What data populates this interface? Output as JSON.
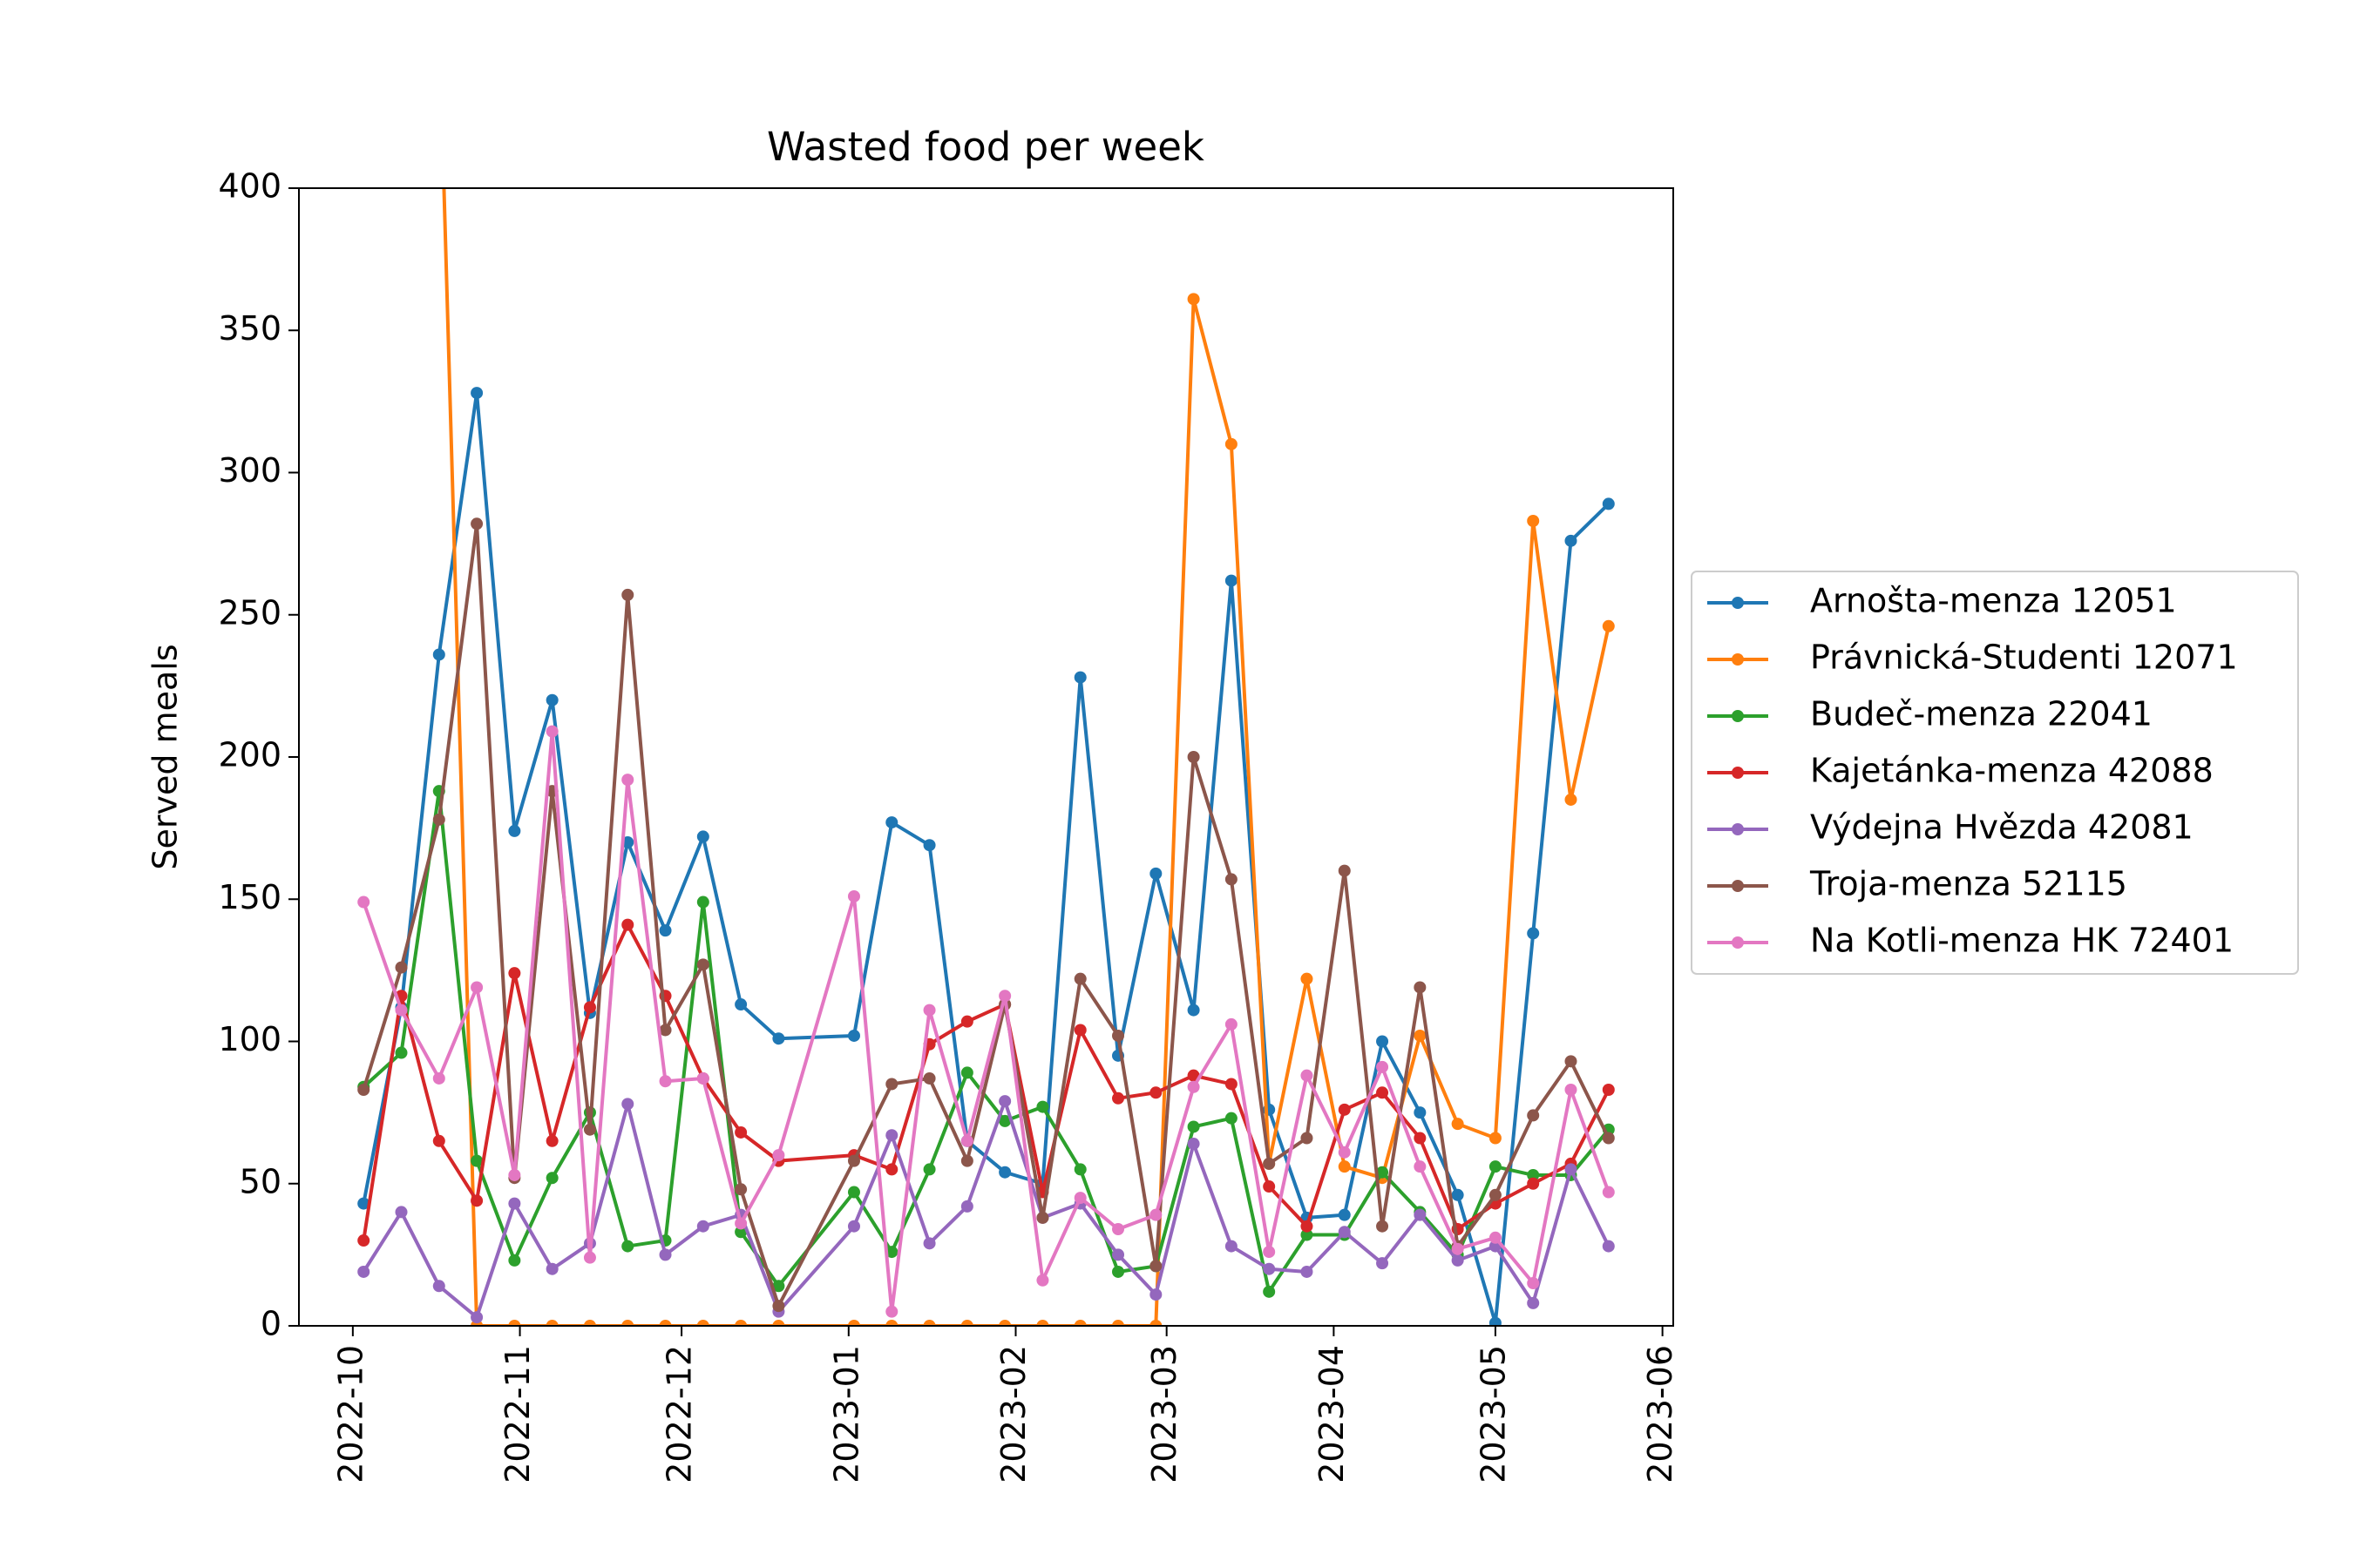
{
  "chart_data": {
    "type": "line",
    "title": "Wasted food per week",
    "y_label": "Served meals",
    "x": [
      "2022-10-03",
      "2022-10-10",
      "2022-10-17",
      "2022-10-24",
      "2022-10-31",
      "2022-11-07",
      "2022-11-14",
      "2022-11-21",
      "2022-11-28",
      "2022-12-05",
      "2022-12-12",
      "2022-12-19",
      "2023-01-02",
      "2023-01-09",
      "2023-01-16",
      "2023-01-23",
      "2023-01-30",
      "2023-02-06",
      "2023-02-13",
      "2023-02-20",
      "2023-02-27",
      "2023-03-06",
      "2023-03-13",
      "2023-03-20",
      "2023-03-27",
      "2023-04-03",
      "2023-04-10",
      "2023-04-17",
      "2023-04-24",
      "2023-05-01",
      "2023-05-08",
      "2023-05-15",
      "2023-05-22"
    ],
    "series": [
      {
        "name": "Arnošta-menza 12051",
        "color": "#1f77b4",
        "values": [
          43,
          112,
          236,
          328,
          174,
          220,
          110,
          170,
          139,
          172,
          113,
          101,
          102,
          177,
          169,
          65,
          54,
          50,
          228,
          95,
          159,
          111,
          262,
          76,
          38,
          39,
          100,
          75,
          46,
          1,
          138,
          276,
          289
        ]
      },
      {
        "name": "Právnická-Studenti 12071",
        "color": "#ff7f0e",
        "values": [
          null,
          null,
          460,
          0,
          0,
          0,
          0,
          0,
          0,
          0,
          0,
          0,
          0,
          0,
          0,
          0,
          0,
          0,
          0,
          0,
          0,
          361,
          310,
          57,
          122,
          56,
          52,
          102,
          71,
          66,
          283,
          185,
          246
        ]
      },
      {
        "name": "Budeč-menza 22041",
        "color": "#2ca02c",
        "values": [
          84,
          96,
          188,
          58,
          23,
          52,
          75,
          28,
          30,
          149,
          33,
          14,
          47,
          26,
          55,
          89,
          72,
          77,
          55,
          19,
          21,
          70,
          73,
          12,
          32,
          32,
          54,
          40,
          25,
          56,
          53,
          53,
          69
        ]
      },
      {
        "name": "Kajetánka-menza 42088",
        "color": "#d62728",
        "values": [
          30,
          116,
          65,
          44,
          124,
          65,
          112,
          141,
          116,
          87,
          68,
          58,
          60,
          55,
          99,
          107,
          113,
          47,
          104,
          80,
          82,
          88,
          85,
          49,
          35,
          76,
          82,
          66,
          34,
          43,
          50,
          57,
          83
        ]
      },
      {
        "name": "Výdejna Hvězda 42081",
        "color": "#9467bd",
        "values": [
          19,
          40,
          14,
          3,
          43,
          20,
          29,
          78,
          25,
          35,
          39,
          5,
          35,
          67,
          29,
          42,
          79,
          38,
          43,
          25,
          11,
          64,
          28,
          20,
          19,
          33,
          22,
          39,
          23,
          28,
          8,
          55,
          28
        ]
      },
      {
        "name": "Troja-menza 52115",
        "color": "#8c564b",
        "values": [
          83,
          126,
          178,
          282,
          52,
          188,
          69,
          257,
          104,
          127,
          48,
          7,
          58,
          85,
          87,
          58,
          113,
          38,
          122,
          102,
          21,
          200,
          157,
          57,
          66,
          160,
          35,
          119,
          28,
          46,
          74,
          93,
          66
        ]
      },
      {
        "name": "Na Kotli-menza HK 72401",
        "color": "#e377c2",
        "values": [
          149,
          111,
          87,
          119,
          53,
          209,
          24,
          192,
          86,
          87,
          36,
          60,
          151,
          5,
          111,
          65,
          116,
          16,
          45,
          34,
          39,
          84,
          106,
          26,
          88,
          61,
          91,
          56,
          27,
          31,
          15,
          83,
          47
        ]
      }
    ],
    "xlim": [
      "2022-09-21",
      "2023-06-03"
    ],
    "xticks": [
      {
        "value": "2022-10-01",
        "label": "2022-10"
      },
      {
        "value": "2022-11-01",
        "label": "2022-11"
      },
      {
        "value": "2022-12-01",
        "label": "2022-12"
      },
      {
        "value": "2023-01-01",
        "label": "2023-01"
      },
      {
        "value": "2023-02-01",
        "label": "2023-02"
      },
      {
        "value": "2023-03-01",
        "label": "2023-03"
      },
      {
        "value": "2023-04-01",
        "label": "2023-04"
      },
      {
        "value": "2023-05-01",
        "label": "2023-05"
      },
      {
        "value": "2023-06-01",
        "label": "2023-06"
      }
    ],
    "ylim": [
      0,
      400
    ],
    "yticks": [
      0,
      50,
      100,
      150,
      200,
      250,
      300,
      350,
      400
    ],
    "grid": false,
    "legend": "right-outside"
  }
}
